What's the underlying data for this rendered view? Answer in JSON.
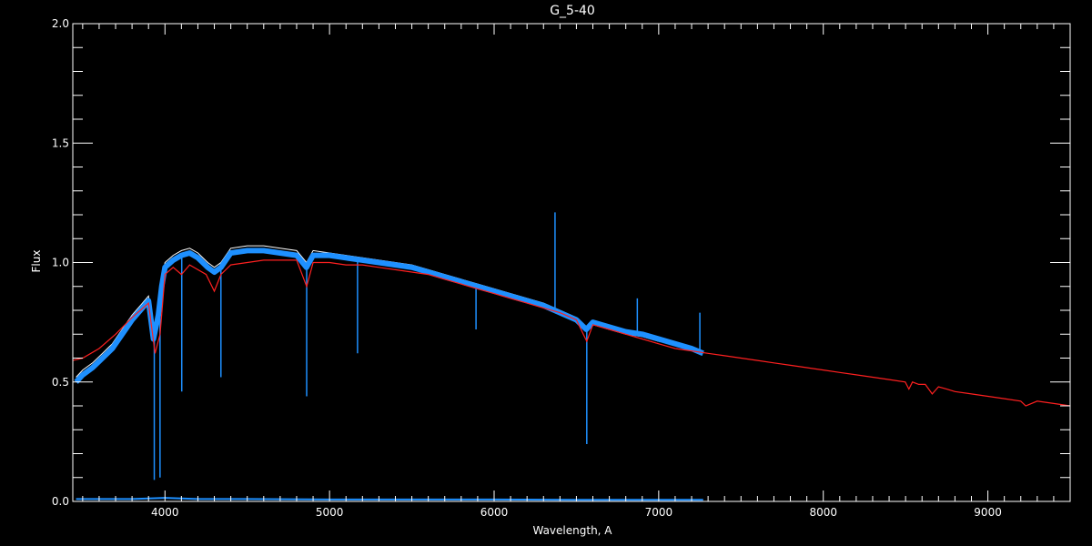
{
  "chart_data": {
    "type": "line",
    "title": "G_5-40",
    "xlabel": "Wavelength, A",
    "ylabel": "Flux",
    "xlim": [
      3440,
      9500
    ],
    "ylim": [
      0.0,
      2.0
    ],
    "x_ticks": [
      "4000",
      "5000",
      "6000",
      "7000",
      "8000",
      "9000"
    ],
    "y_ticks": [
      "0.0",
      "0.5",
      "1.0",
      "1.5",
      "2.0"
    ],
    "grid": false,
    "colors": {
      "background": "#000000",
      "axes": "#ffffff",
      "observed": "#ffffff",
      "observed_overlay": "#1e90ff",
      "model": "#ff2020",
      "error": "#1e90ff"
    },
    "series": [
      {
        "key": "observed",
        "x": [
          3460,
          3500,
          3560,
          3620,
          3680,
          3720,
          3760,
          3800,
          3850,
          3900,
          3930,
          3960,
          3980,
          4000,
          4050,
          4100,
          4150,
          4200,
          4260,
          4300,
          4340,
          4400,
          4500,
          4600,
          4700,
          4800,
          4860,
          4900,
          5000,
          5100,
          5200,
          5300,
          5400,
          5500,
          5600,
          5700,
          5800,
          5900,
          6000,
          6100,
          6200,
          6300,
          6400,
          6500,
          6560,
          6600,
          6700,
          6800,
          6900,
          7000,
          7100,
          7200,
          7270
        ],
        "y": [
          0.52,
          0.55,
          0.58,
          0.62,
          0.66,
          0.7,
          0.74,
          0.78,
          0.82,
          0.86,
          0.7,
          0.8,
          0.92,
          1.0,
          1.03,
          1.05,
          1.06,
          1.04,
          1.0,
          0.98,
          1.0,
          1.06,
          1.07,
          1.07,
          1.06,
          1.05,
          1.0,
          1.05,
          1.04,
          1.03,
          1.02,
          1.01,
          1.0,
          0.99,
          0.97,
          0.95,
          0.93,
          0.91,
          0.89,
          0.87,
          0.85,
          0.83,
          0.8,
          0.77,
          0.73,
          0.74,
          0.72,
          0.7,
          0.69,
          0.67,
          0.66,
          0.64,
          0.63
        ]
      },
      {
        "key": "observed_overlay",
        "x": [
          3460,
          3500,
          3560,
          3620,
          3680,
          3720,
          3760,
          3800,
          3850,
          3900,
          3930,
          3960,
          3980,
          4000,
          4050,
          4100,
          4150,
          4200,
          4260,
          4300,
          4340,
          4400,
          4500,
          4600,
          4700,
          4800,
          4860,
          4900,
          5000,
          5100,
          5200,
          5300,
          5400,
          5500,
          5600,
          5700,
          5800,
          5900,
          6000,
          6100,
          6200,
          6300,
          6400,
          6500,
          6560,
          6600,
          6700,
          6800,
          6900,
          7000,
          7100,
          7200,
          7270
        ],
        "y": [
          0.5,
          0.53,
          0.56,
          0.6,
          0.64,
          0.68,
          0.72,
          0.76,
          0.8,
          0.84,
          0.68,
          0.78,
          0.9,
          0.98,
          1.01,
          1.03,
          1.04,
          1.02,
          0.98,
          0.96,
          0.98,
          1.04,
          1.05,
          1.05,
          1.04,
          1.03,
          0.98,
          1.03,
          1.03,
          1.02,
          1.01,
          1.0,
          0.99,
          0.98,
          0.96,
          0.94,
          0.92,
          0.9,
          0.88,
          0.86,
          0.84,
          0.82,
          0.79,
          0.76,
          0.72,
          0.75,
          0.73,
          0.71,
          0.7,
          0.68,
          0.66,
          0.64,
          0.62
        ],
        "spikes": [
          {
            "x": 3935,
            "y": 0.09
          },
          {
            "x": 3970,
            "y": 0.1
          },
          {
            "x": 4102,
            "y": 0.46
          },
          {
            "x": 4340,
            "y": 0.52
          },
          {
            "x": 4861,
            "y": 0.44
          },
          {
            "x": 5170,
            "y": 0.62
          },
          {
            "x": 5890,
            "y": 0.72
          },
          {
            "x": 6370,
            "y": 1.21
          },
          {
            "x": 6563,
            "y": 0.24
          },
          {
            "x": 6870,
            "y": 0.85
          },
          {
            "x": 7250,
            "y": 0.79
          }
        ]
      },
      {
        "key": "model",
        "x": [
          3440,
          3500,
          3600,
          3700,
          3800,
          3850,
          3900,
          3940,
          3970,
          4000,
          4050,
          4100,
          4150,
          4200,
          4250,
          4300,
          4340,
          4400,
          4500,
          4600,
          4700,
          4800,
          4861,
          4900,
          5000,
          5100,
          5200,
          5300,
          5400,
          5500,
          5600,
          5700,
          5800,
          5900,
          6000,
          6100,
          6200,
          6300,
          6400,
          6500,
          6563,
          6600,
          6700,
          6800,
          6900,
          7000,
          7100,
          7200,
          7300,
          7400,
          7500,
          7600,
          7700,
          7800,
          7900,
          8000,
          8100,
          8200,
          8300,
          8400,
          8498,
          8520,
          8542,
          8580,
          8620,
          8662,
          8700,
          8750,
          8800,
          8900,
          9000,
          9100,
          9200,
          9230,
          9300,
          9400,
          9500
        ],
        "y": [
          0.59,
          0.6,
          0.64,
          0.7,
          0.77,
          0.8,
          0.83,
          0.62,
          0.7,
          0.95,
          0.98,
          0.95,
          0.99,
          0.97,
          0.95,
          0.88,
          0.95,
          0.99,
          1.0,
          1.01,
          1.01,
          1.01,
          0.9,
          1.0,
          1.0,
          0.99,
          0.99,
          0.98,
          0.97,
          0.96,
          0.95,
          0.93,
          0.91,
          0.89,
          0.87,
          0.85,
          0.83,
          0.81,
          0.79,
          0.76,
          0.67,
          0.74,
          0.72,
          0.7,
          0.68,
          0.66,
          0.64,
          0.63,
          0.62,
          0.61,
          0.6,
          0.59,
          0.58,
          0.57,
          0.56,
          0.55,
          0.54,
          0.53,
          0.52,
          0.51,
          0.5,
          0.47,
          0.5,
          0.49,
          0.49,
          0.45,
          0.48,
          0.47,
          0.46,
          0.45,
          0.44,
          0.43,
          0.42,
          0.4,
          0.42,
          0.41,
          0.4
        ]
      },
      {
        "key": "error",
        "x": [
          3460,
          3600,
          3800,
          4000,
          4200,
          4500,
          5000,
          5500,
          6000,
          6500,
          7000,
          7270
        ],
        "y": [
          0.01,
          0.01,
          0.01,
          0.015,
          0.01,
          0.01,
          0.008,
          0.008,
          0.008,
          0.007,
          0.007,
          0.007
        ]
      }
    ]
  }
}
